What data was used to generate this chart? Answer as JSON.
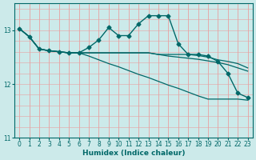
{
  "xlabel": "Humidex (Indice chaleur)",
  "background_color": "#cceaea",
  "grid_color_major": "#e8a0a0",
  "grid_color_minor": "#e8c8c8",
  "line_color": "#006868",
  "xlim": [
    -0.5,
    23.5
  ],
  "ylim": [
    11.0,
    13.5
  ],
  "yticks": [
    11,
    12,
    13
  ],
  "xticks": [
    0,
    1,
    2,
    3,
    4,
    5,
    6,
    7,
    8,
    9,
    10,
    11,
    12,
    13,
    14,
    15,
    16,
    17,
    18,
    19,
    20,
    21,
    22,
    23
  ],
  "series": [
    {
      "x": [
        0,
        1,
        2,
        3,
        4,
        5,
        6,
        7,
        8,
        9,
        10,
        11,
        12,
        13,
        14,
        15,
        16,
        17,
        18,
        19,
        20,
        21,
        22,
        23
      ],
      "y": [
        13.03,
        12.88,
        12.65,
        12.62,
        12.6,
        12.58,
        12.58,
        12.68,
        12.82,
        13.05,
        12.9,
        12.9,
        13.12,
        13.27,
        13.27,
        13.27,
        12.75,
        12.55,
        12.55,
        12.52,
        12.42,
        12.2,
        11.83,
        11.75
      ],
      "marker": "D",
      "markersize": 2.5,
      "linewidth": 1.0
    },
    {
      "x": [
        0,
        1,
        2,
        3,
        4,
        5,
        6,
        7,
        8,
        9,
        10,
        11,
        12,
        13,
        14,
        15,
        16,
        17,
        18,
        19,
        20,
        21,
        22,
        23
      ],
      "y": [
        13.03,
        12.88,
        12.65,
        12.62,
        12.6,
        12.58,
        12.58,
        12.58,
        12.58,
        12.58,
        12.58,
        12.58,
        12.58,
        12.58,
        12.55,
        12.55,
        12.55,
        12.55,
        12.53,
        12.5,
        12.45,
        12.42,
        12.38,
        12.3
      ],
      "marker": null,
      "linewidth": 0.9
    },
    {
      "x": [
        0,
        1,
        2,
        3,
        4,
        5,
        6,
        7,
        8,
        9,
        10,
        11,
        12,
        13,
        14,
        15,
        16,
        17,
        18,
        19,
        20,
        21,
        22,
        23
      ],
      "y": [
        13.03,
        12.88,
        12.65,
        12.62,
        12.6,
        12.58,
        12.58,
        12.58,
        12.58,
        12.58,
        12.58,
        12.58,
        12.58,
        12.58,
        12.55,
        12.52,
        12.5,
        12.48,
        12.46,
        12.43,
        12.4,
        12.36,
        12.3,
        12.24
      ],
      "marker": null,
      "linewidth": 0.9
    },
    {
      "x": [
        0,
        1,
        2,
        3,
        4,
        5,
        6,
        7,
        8,
        9,
        10,
        11,
        12,
        13,
        14,
        15,
        16,
        17,
        18,
        19,
        20,
        21,
        22,
        23
      ],
      "y": [
        13.03,
        12.88,
        12.65,
        12.62,
        12.6,
        12.58,
        12.58,
        12.52,
        12.45,
        12.38,
        12.32,
        12.25,
        12.18,
        12.12,
        12.05,
        11.98,
        11.92,
        11.85,
        11.78,
        11.72,
        11.72,
        11.72,
        11.72,
        11.7
      ],
      "marker": null,
      "linewidth": 0.9
    }
  ]
}
